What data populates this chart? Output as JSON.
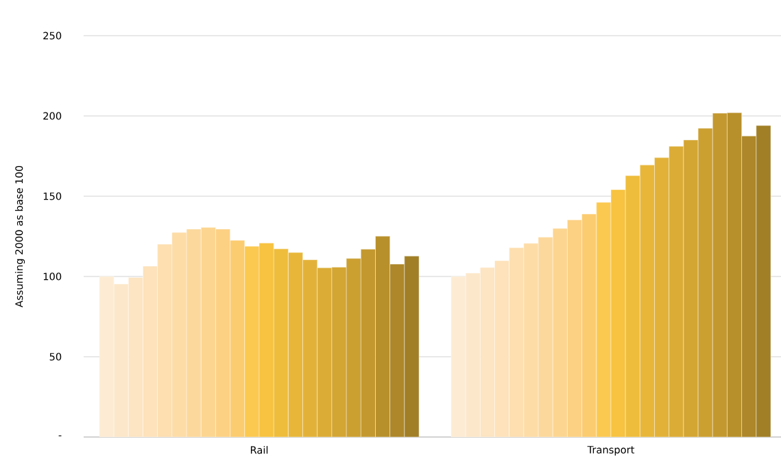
{
  "chart_data": {
    "type": "bar",
    "ylabel": "Assuming 2000 as base 100",
    "categories": [
      "Rail",
      "Transport"
    ],
    "ylim": [
      0,
      250
    ],
    "yticks": [
      {
        "value": 0,
        "label": "-"
      },
      50,
      100,
      150,
      200,
      250
    ],
    "grid": "y",
    "series": [
      {
        "color": "#fdebd3",
        "values": [
          100,
          100
        ]
      },
      {
        "color": "#fde7ca",
        "values": [
          95.3,
          102.1
        ]
      },
      {
        "color": "#fde4c2",
        "values": [
          99.4,
          105.6
        ]
      },
      {
        "color": "#fde2bb",
        "values": [
          106.4,
          109.8
        ]
      },
      {
        "color": "#fddfb0",
        "values": [
          120.1,
          117.9
        ]
      },
      {
        "color": "#fddca6",
        "values": [
          127.4,
          120.6
        ]
      },
      {
        "color": "#fcd89c",
        "values": [
          129.5,
          124.5
        ]
      },
      {
        "color": "#fcd590",
        "values": [
          130.6,
          129.9
        ]
      },
      {
        "color": "#fcd183",
        "values": [
          129.5,
          135.2
        ]
      },
      {
        "color": "#fccc70",
        "values": [
          122.5,
          138.9
        ]
      },
      {
        "color": "#fcc950",
        "values": [
          118.8,
          146.2
        ]
      },
      {
        "color": "#f7c340",
        "values": [
          120.8,
          154.1
        ]
      },
      {
        "color": "#efbd3c",
        "values": [
          117.2,
          162.8
        ]
      },
      {
        "color": "#e8b73a",
        "values": [
          114.9,
          169.4
        ]
      },
      {
        "color": "#e2b238",
        "values": [
          110.4,
          174
        ]
      },
      {
        "color": "#dbac36",
        "values": [
          105.4,
          181.1
        ]
      },
      {
        "color": "#d3a533",
        "values": [
          105.8,
          185
        ]
      },
      {
        "color": "#cc9f31",
        "values": [
          111.2,
          192.3
        ]
      },
      {
        "color": "#c3982e",
        "values": [
          117,
          201.7
        ]
      },
      {
        "color": "#b8902b",
        "values": [
          125.1,
          202
        ]
      },
      {
        "color": "#ad8729",
        "values": [
          107.7,
          187.5
        ]
      },
      {
        "color": "#a17f26",
        "values": [
          112.7,
          194
        ]
      }
    ]
  }
}
